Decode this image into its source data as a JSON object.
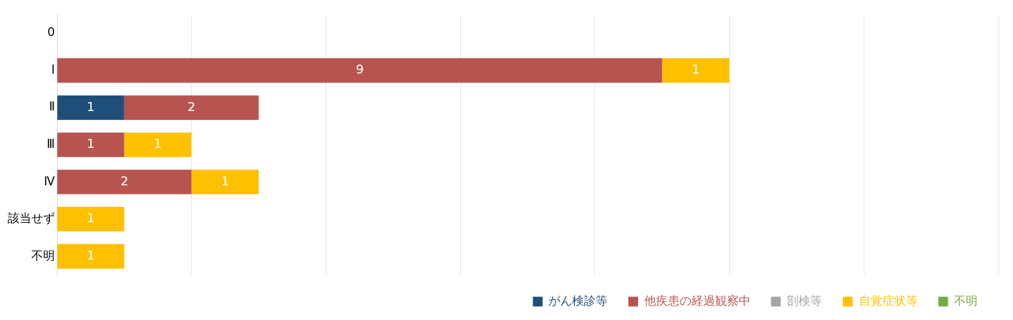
{
  "chart_data": {
    "type": "bar",
    "orientation": "horizontal",
    "stacked": true,
    "categories": [
      "0",
      "Ⅰ",
      "Ⅱ",
      "Ⅲ",
      "Ⅳ",
      "該当せず",
      "不明"
    ],
    "series": [
      {
        "name": "がん検診等",
        "color": "#1f4e79",
        "values": [
          null,
          null,
          1,
          null,
          null,
          null,
          null
        ]
      },
      {
        "name": "他疾患の経過観察中",
        "color": "#b85450",
        "values": [
          null,
          9,
          2,
          1,
          2,
          null,
          null
        ]
      },
      {
        "name": "剖検等",
        "color": "#a5a5a5",
        "values": [
          null,
          null,
          null,
          null,
          null,
          null,
          null
        ]
      },
      {
        "name": "自覚症状等",
        "color": "#ffc000",
        "values": [
          null,
          1,
          null,
          1,
          1,
          1,
          1
        ]
      },
      {
        "name": "不明",
        "color": "#70ad47",
        "values": [
          null,
          null,
          null,
          null,
          null,
          null,
          null
        ]
      }
    ],
    "xlim": [
      0,
      14
    ],
    "xticks": [
      {
        "value": 0,
        "label": null
      },
      {
        "value": 2,
        "label": null
      },
      {
        "value": 4,
        "label": null
      },
      {
        "value": 6,
        "label": null
      },
      {
        "value": 8,
        "label": null
      },
      {
        "value": 10,
        "label": null
      },
      {
        "value": 12,
        "label": null
      },
      {
        "value": 14,
        "label": null
      }
    ],
    "tick_labels": "y",
    "grid": "x",
    "legend": "bottom right",
    "data_labels": true
  }
}
